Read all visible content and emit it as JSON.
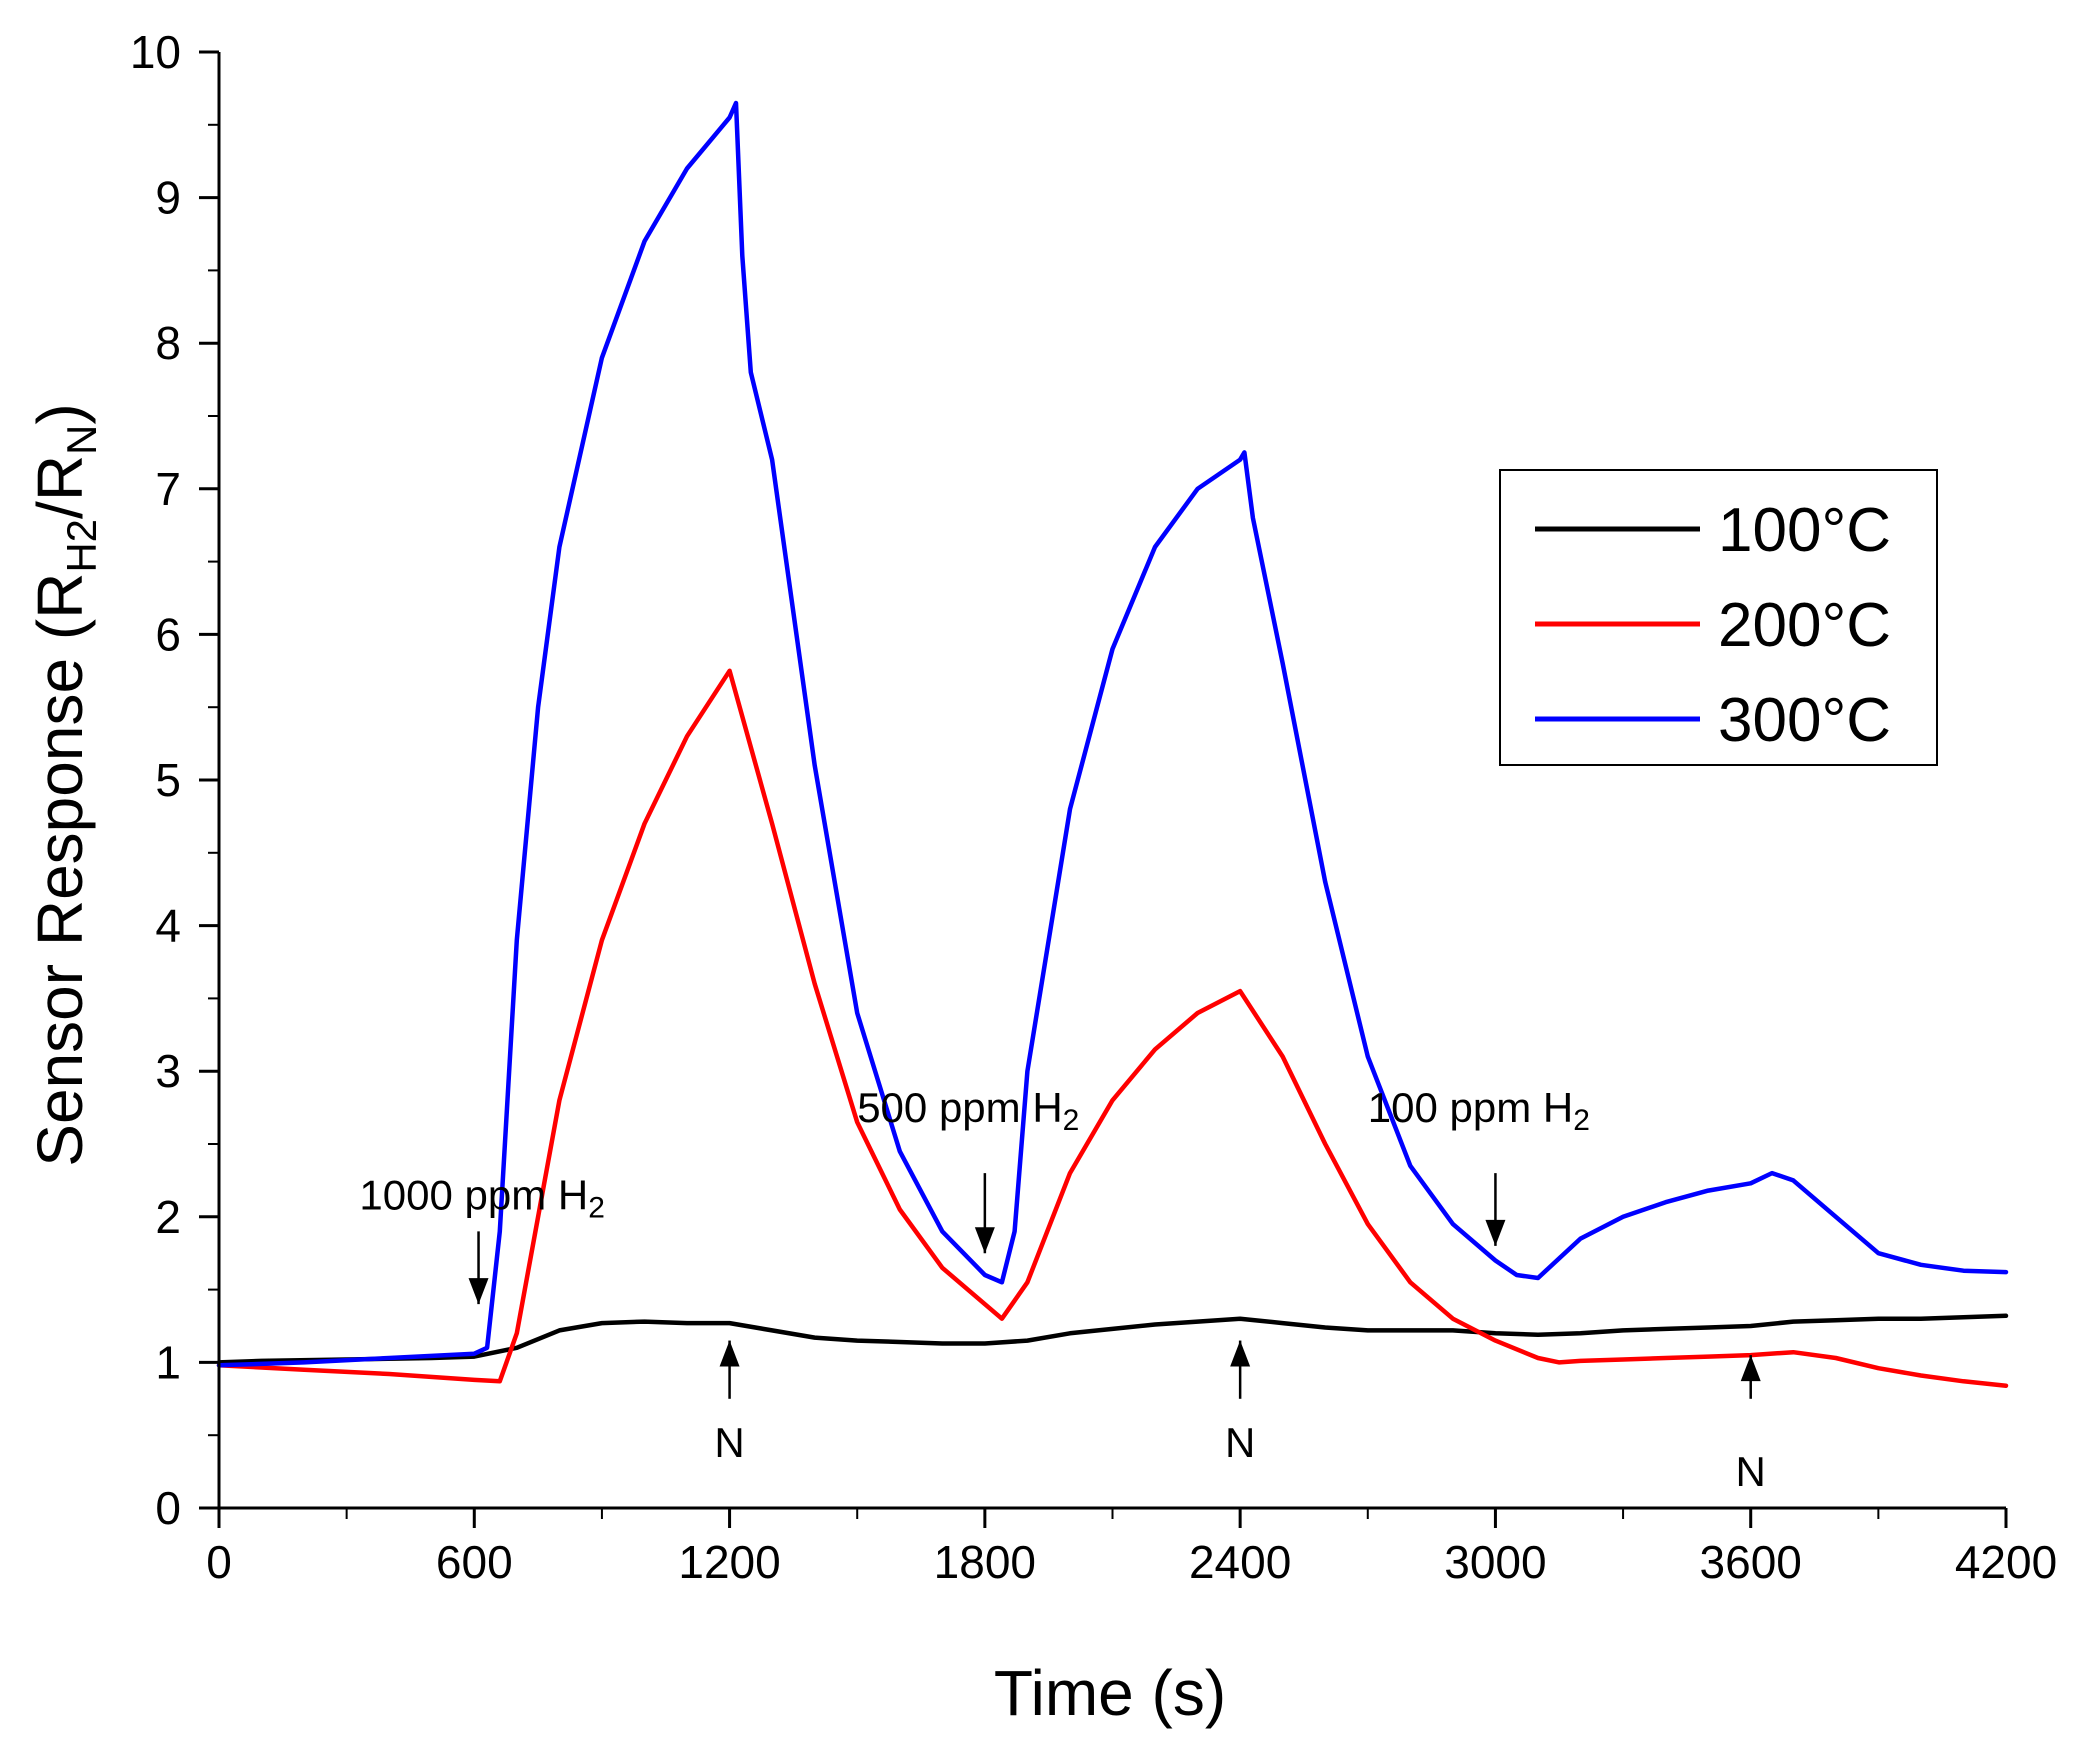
{
  "chart_data": {
    "type": "line",
    "xlabel": "Time (s)",
    "ylabel": {
      "main": "Sensor Response (R",
      "sub1": "H2",
      "mid": "/R",
      "sub2": "N",
      "end": ")"
    },
    "xlim": [
      0,
      4200
    ],
    "ylim": [
      0,
      10
    ],
    "x_ticks": [
      "0",
      "600",
      "1200",
      "1800",
      "2400",
      "3000",
      "3600",
      "4200"
    ],
    "y_ticks": [
      "0",
      "1",
      "2",
      "3",
      "4",
      "5",
      "6",
      "7",
      "8",
      "9",
      "10"
    ],
    "legend_position": "right",
    "series": [
      {
        "name": "100°C",
        "color": "#000000",
        "points": [
          [
            0,
            1.0
          ],
          [
            100,
            1.01
          ],
          [
            300,
            1.02
          ],
          [
            500,
            1.03
          ],
          [
            600,
            1.04
          ],
          [
            700,
            1.1
          ],
          [
            800,
            1.22
          ],
          [
            900,
            1.27
          ],
          [
            1000,
            1.28
          ],
          [
            1100,
            1.27
          ],
          [
            1200,
            1.27
          ],
          [
            1300,
            1.22
          ],
          [
            1400,
            1.17
          ],
          [
            1500,
            1.15
          ],
          [
            1600,
            1.14
          ],
          [
            1700,
            1.13
          ],
          [
            1800,
            1.13
          ],
          [
            1900,
            1.15
          ],
          [
            2000,
            1.2
          ],
          [
            2100,
            1.23
          ],
          [
            2200,
            1.26
          ],
          [
            2300,
            1.28
          ],
          [
            2400,
            1.3
          ],
          [
            2500,
            1.27
          ],
          [
            2600,
            1.24
          ],
          [
            2700,
            1.22
          ],
          [
            2800,
            1.22
          ],
          [
            2900,
            1.22
          ],
          [
            3000,
            1.2
          ],
          [
            3100,
            1.19
          ],
          [
            3200,
            1.2
          ],
          [
            3300,
            1.22
          ],
          [
            3400,
            1.23
          ],
          [
            3500,
            1.24
          ],
          [
            3600,
            1.25
          ],
          [
            3700,
            1.28
          ],
          [
            3800,
            1.29
          ],
          [
            3900,
            1.3
          ],
          [
            4000,
            1.3
          ],
          [
            4100,
            1.31
          ],
          [
            4200,
            1.32
          ]
        ]
      },
      {
        "name": "200°C",
        "color": "#ff0000",
        "points": [
          [
            0,
            0.98
          ],
          [
            200,
            0.95
          ],
          [
            400,
            0.92
          ],
          [
            600,
            0.88
          ],
          [
            660,
            0.87
          ],
          [
            700,
            1.2
          ],
          [
            750,
            2.0
          ],
          [
            800,
            2.8
          ],
          [
            900,
            3.9
          ],
          [
            1000,
            4.7
          ],
          [
            1100,
            5.3
          ],
          [
            1200,
            5.75
          ],
          [
            1300,
            4.7
          ],
          [
            1400,
            3.6
          ],
          [
            1500,
            2.65
          ],
          [
            1600,
            2.05
          ],
          [
            1700,
            1.65
          ],
          [
            1800,
            1.4
          ],
          [
            1840,
            1.3
          ],
          [
            1900,
            1.55
          ],
          [
            2000,
            2.3
          ],
          [
            2100,
            2.8
          ],
          [
            2200,
            3.15
          ],
          [
            2300,
            3.4
          ],
          [
            2400,
            3.55
          ],
          [
            2500,
            3.1
          ],
          [
            2600,
            2.5
          ],
          [
            2700,
            1.95
          ],
          [
            2800,
            1.55
          ],
          [
            2900,
            1.3
          ],
          [
            3000,
            1.15
          ],
          [
            3100,
            1.03
          ],
          [
            3150,
            1.0
          ],
          [
            3200,
            1.01
          ],
          [
            3300,
            1.02
          ],
          [
            3400,
            1.03
          ],
          [
            3500,
            1.04
          ],
          [
            3600,
            1.05
          ],
          [
            3700,
            1.07
          ],
          [
            3800,
            1.03
          ],
          [
            3900,
            0.96
          ],
          [
            4000,
            0.91
          ],
          [
            4100,
            0.87
          ],
          [
            4200,
            0.84
          ]
        ]
      },
      {
        "name": "300°C",
        "color": "#0000ff",
        "points": [
          [
            0,
            0.98
          ],
          [
            200,
            1.0
          ],
          [
            400,
            1.03
          ],
          [
            600,
            1.06
          ],
          [
            630,
            1.1
          ],
          [
            660,
            1.9
          ],
          [
            700,
            3.9
          ],
          [
            750,
            5.5
          ],
          [
            800,
            6.6
          ],
          [
            900,
            7.9
          ],
          [
            1000,
            8.7
          ],
          [
            1100,
            9.2
          ],
          [
            1200,
            9.55
          ],
          [
            1215,
            9.65
          ],
          [
            1230,
            8.6
          ],
          [
            1250,
            7.8
          ],
          [
            1300,
            7.2
          ],
          [
            1400,
            5.1
          ],
          [
            1500,
            3.4
          ],
          [
            1600,
            2.45
          ],
          [
            1700,
            1.9
          ],
          [
            1800,
            1.6
          ],
          [
            1840,
            1.55
          ],
          [
            1870,
            1.9
          ],
          [
            1900,
            3.0
          ],
          [
            2000,
            4.8
          ],
          [
            2100,
            5.9
          ],
          [
            2200,
            6.6
          ],
          [
            2300,
            7.0
          ],
          [
            2400,
            7.2
          ],
          [
            2410,
            7.25
          ],
          [
            2430,
            6.8
          ],
          [
            2500,
            5.8
          ],
          [
            2600,
            4.3
          ],
          [
            2700,
            3.1
          ],
          [
            2800,
            2.35
          ],
          [
            2900,
            1.95
          ],
          [
            3000,
            1.7
          ],
          [
            3050,
            1.6
          ],
          [
            3100,
            1.58
          ],
          [
            3200,
            1.85
          ],
          [
            3300,
            2.0
          ],
          [
            3400,
            2.1
          ],
          [
            3500,
            2.18
          ],
          [
            3600,
            2.23
          ],
          [
            3650,
            2.3
          ],
          [
            3700,
            2.25
          ],
          [
            3800,
            2.0
          ],
          [
            3900,
            1.75
          ],
          [
            4000,
            1.67
          ],
          [
            4100,
            1.63
          ],
          [
            4200,
            1.62
          ]
        ]
      }
    ],
    "annotations": [
      {
        "text": "1000 ppm H",
        "sub": "2",
        "tx": 330,
        "ty": 2.05,
        "ax": 610,
        "ay_from": 1.9,
        "ay_to": 1.4,
        "dir": "down"
      },
      {
        "text": "500 ppm H",
        "sub": "2",
        "tx": 1500,
        "ty": 2.65,
        "ax": 1800,
        "ay_from": 2.3,
        "ay_to": 1.75,
        "dir": "down"
      },
      {
        "text": "100 ppm H",
        "sub": "2",
        "tx": 2700,
        "ty": 2.65,
        "ax": 3000,
        "ay_from": 2.3,
        "ay_to": 1.8,
        "dir": "down"
      },
      {
        "text": "N",
        "sub": "",
        "tx": 1200,
        "ty": 0.35,
        "ax": 1200,
        "ay_from": 0.75,
        "ay_to": 1.15,
        "dir": "up"
      },
      {
        "text": "N",
        "sub": "",
        "tx": 2400,
        "ty": 0.35,
        "ax": 2400,
        "ay_from": 0.75,
        "ay_to": 1.15,
        "dir": "up"
      },
      {
        "text": "N",
        "sub": "",
        "tx": 3600,
        "ty": 0.15,
        "ax": 3600,
        "ay_from": 0.75,
        "ay_to": 1.05,
        "dir": "up"
      }
    ]
  }
}
